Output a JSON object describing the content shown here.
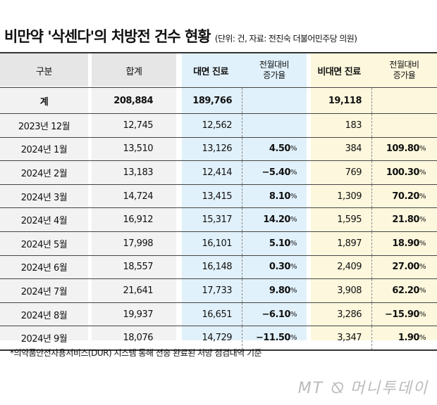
{
  "title": "비만약 '삭센다'의 처방전 건수 현황",
  "subtitle": "(단위: 건, 자료: 전진숙 더불어민주당 의원)",
  "colors": {
    "header_gray": "#e8e8e8",
    "body_gray": "#f2f2f2",
    "blue": "#e1f1fb",
    "yellow": "#fdf8dd"
  },
  "chart_data": {
    "type": "table",
    "columns": [
      "구분",
      "합계",
      "대면 진료",
      "전월대비 증가율",
      "비대면 진료",
      "전월대비 증가율"
    ],
    "total": {
      "label": "계",
      "sum": "208,884",
      "face": "189,766",
      "face_rate": "",
      "nonface": "19,118",
      "nonface_rate": ""
    },
    "rows": [
      {
        "label": "2023년 12월",
        "sum": "12,745",
        "face": "12,562",
        "face_rate": "",
        "nonface": "183",
        "nonface_rate": ""
      },
      {
        "label": "2024년 1월",
        "sum": "13,510",
        "face": "13,126",
        "face_rate": "4.50",
        "nonface": "384",
        "nonface_rate": "109.80"
      },
      {
        "label": "2024년 2월",
        "sum": "13,183",
        "face": "12,414",
        "face_rate": "−5.40",
        "nonface": "769",
        "nonface_rate": "100.30"
      },
      {
        "label": "2024년 3월",
        "sum": "14,724",
        "face": "13,415",
        "face_rate": "8.10",
        "nonface": "1,309",
        "nonface_rate": "70.20"
      },
      {
        "label": "2024년 4월",
        "sum": "16,912",
        "face": "15,317",
        "face_rate": "14.20",
        "nonface": "1,595",
        "nonface_rate": "21.80"
      },
      {
        "label": "2024년 5월",
        "sum": "17,998",
        "face": "16,101",
        "face_rate": "5.10",
        "nonface": "1,897",
        "nonface_rate": "18.90"
      },
      {
        "label": "2024년 6월",
        "sum": "18,557",
        "face": "16,148",
        "face_rate": "0.30",
        "nonface": "2,409",
        "nonface_rate": "27.00"
      },
      {
        "label": "2024년 7월",
        "sum": "21,641",
        "face": "17,733",
        "face_rate": "9.80",
        "nonface": "3,908",
        "nonface_rate": "62.20"
      },
      {
        "label": "2024년 8월",
        "sum": "19,937",
        "face": "16,651",
        "face_rate": "−6.10",
        "nonface": "3,286",
        "nonface_rate": "−15.90"
      },
      {
        "label": "2024년 9월",
        "sum": "18,076",
        "face": "14,729",
        "face_rate": "−11.50",
        "nonface": "3,347",
        "nonface_rate": "1.90"
      }
    ],
    "unit_symbol": "%"
  },
  "header": {
    "c0": "구분",
    "c1": "합계",
    "c2": "대면 진료",
    "c3a": "전월대비",
    "c3b": "증가율",
    "c4": "비대면 진료",
    "c5a": "전월대비",
    "c5b": "증가율"
  },
  "note": "*의약품안전사용서비스(DUR) 시스템 통해 전송 완료된 처방 점검내역 기준",
  "logo": "MT ⦰ 머니투데이"
}
